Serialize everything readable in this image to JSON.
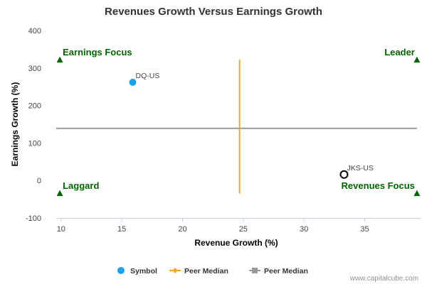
{
  "chart_data": {
    "type": "scatter",
    "title": "Revenues Growth Versus Earnings Growth",
    "xlabel": "Revenue Growth (%)",
    "ylabel": "Earnings Growth (%)",
    "xlim": [
      9.6,
      39.6
    ],
    "ylim": [
      -100,
      400
    ],
    "xticks": [
      10,
      15,
      20,
      25,
      30,
      35
    ],
    "yticks": [
      -100,
      0,
      100,
      200,
      300,
      400
    ],
    "grid": false,
    "points": [
      {
        "label": "DQ-US",
        "x": 15.9,
        "y": 262,
        "style": "filled",
        "color": "#1aa3e8"
      },
      {
        "label": "JKS-US",
        "x": 33.3,
        "y": 16,
        "style": "hollow",
        "color": "#000000"
      }
    ],
    "peer_median_revenue": {
      "value": 24.7,
      "y_range": [
        -35,
        323
      ],
      "color": "#f5a623"
    },
    "peer_median_earnings": {
      "value": 139,
      "color": "#999999"
    },
    "quadrants": [
      {
        "label": "Earnings Focus",
        "x": 9.9,
        "y": 322,
        "corner": "top-left"
      },
      {
        "label": "Leader",
        "x": 39.3,
        "y": 322,
        "corner": "top-right"
      },
      {
        "label": "Laggard",
        "x": 9.9,
        "y": -34,
        "corner": "bottom-left"
      },
      {
        "label": "Revenues Focus",
        "x": 39.3,
        "y": -34,
        "corner": "bottom-right"
      }
    ],
    "quadrant_color": "#006400",
    "legend": {
      "placement": "bottom",
      "items": [
        {
          "label": "Symbol",
          "marker": "circle",
          "color": "#1aa3e8"
        },
        {
          "label": "Peer Median",
          "marker": "diamond-line",
          "color": "#f5a623"
        },
        {
          "label": "Peer Median",
          "marker": "square-line",
          "color": "#999999"
        }
      ]
    },
    "credit": "www.capitalcube.com"
  }
}
